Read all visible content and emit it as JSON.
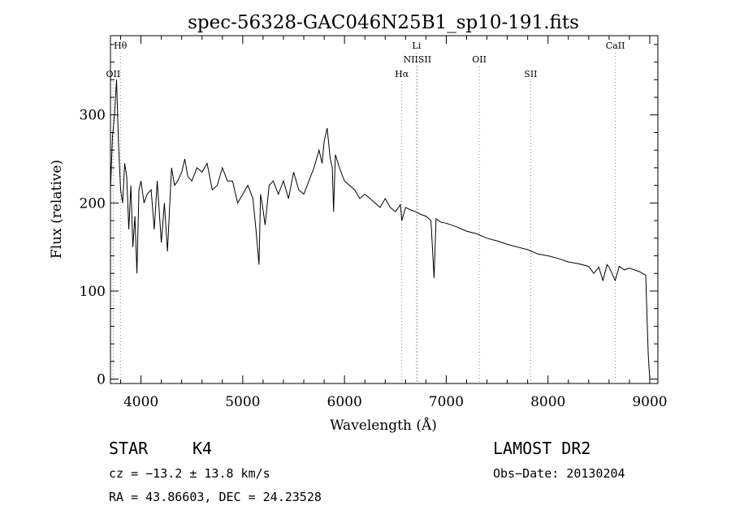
{
  "chart_data": {
    "type": "line",
    "title": "spec-56328-GAC046N25B1_sp10-191.fits",
    "xlabel": "Wavelength (Å)",
    "ylabel": "Flux (relative)",
    "xlim": [
      3700,
      9080
    ],
    "ylim": [
      -5,
      390
    ],
    "x_ticks": [
      4000,
      5000,
      6000,
      7000,
      8000,
      9000
    ],
    "y_ticks": [
      0,
      100,
      200,
      300
    ],
    "grid": false,
    "line_color": "#000000",
    "marker_line_color": "#888888",
    "lines": [
      {
        "label": "Hθ",
        "wavelength": 3798,
        "label_row": 0
      },
      {
        "label": "OII",
        "wavelength": 3727,
        "label_row": 2
      },
      {
        "label": "Li",
        "wavelength": 6708,
        "label_row": 0
      },
      {
        "label": "NIISII",
        "wavelength": 6716,
        "label_row": 1
      },
      {
        "label": "Hα",
        "wavelength": 6563,
        "label_row": 2
      },
      {
        "label": "OII",
        "wavelength": 7325,
        "label_row": 1
      },
      {
        "label": "SII",
        "wavelength": 7830,
        "label_row": 2
      },
      {
        "label": "CaII",
        "wavelength": 8662,
        "label_row": 0
      }
    ],
    "series": [
      {
        "x": [
          3700,
          3720,
          3740,
          3760,
          3780,
          3800,
          3820,
          3840,
          3860,
          3880,
          3900,
          3920,
          3940,
          3960,
          3980,
          4000,
          4030,
          4060,
          4100,
          4130,
          4160,
          4200,
          4230,
          4260,
          4300,
          4330,
          4360,
          4400,
          4430,
          4460,
          4500,
          4550,
          4600,
          4650,
          4700,
          4750,
          4800,
          4850,
          4900,
          4950,
          5000,
          5050,
          5100,
          5130,
          5160,
          5175,
          5190,
          5220,
          5260,
          5300,
          5350,
          5400,
          5450,
          5500,
          5550,
          5600,
          5650,
          5700,
          5750,
          5780,
          5800,
          5830,
          5860,
          5880,
          5893,
          5910,
          5950,
          6000,
          6050,
          6100,
          6150,
          6200,
          6250,
          6300,
          6350,
          6400,
          6450,
          6500,
          6550,
          6563,
          6600,
          6650,
          6700,
          6750,
          6800,
          6850,
          6880,
          6900,
          6950,
          7000,
          7100,
          7200,
          7300,
          7400,
          7500,
          7600,
          7700,
          7800,
          7900,
          8000,
          8100,
          8200,
          8300,
          8400,
          8450,
          8500,
          8540,
          8580,
          8600,
          8660,
          8700,
          8750,
          8800,
          8850,
          8900,
          8960,
          8985,
          9000
        ],
        "y": [
          215,
          275,
          300,
          340,
          265,
          215,
          200,
          245,
          230,
          170,
          220,
          150,
          185,
          120,
          215,
          225,
          200,
          210,
          215,
          170,
          225,
          155,
          200,
          145,
          240,
          220,
          225,
          235,
          250,
          230,
          225,
          240,
          235,
          245,
          215,
          220,
          240,
          225,
          225,
          200,
          210,
          220,
          205,
          170,
          130,
          210,
          200,
          175,
          220,
          225,
          210,
          225,
          205,
          235,
          215,
          210,
          225,
          240,
          260,
          245,
          270,
          285,
          250,
          240,
          190,
          255,
          240,
          225,
          220,
          215,
          205,
          210,
          205,
          200,
          195,
          205,
          195,
          190,
          198,
          180,
          195,
          192,
          190,
          187,
          185,
          180,
          115,
          182,
          178,
          177,
          173,
          168,
          165,
          160,
          157,
          153,
          150,
          147,
          142,
          140,
          137,
          133,
          131,
          128,
          120,
          127,
          112,
          130,
          127,
          112,
          128,
          124,
          126,
          124,
          122,
          118,
          28,
          0
        ]
      }
    ]
  },
  "info": {
    "class_label": "STAR",
    "subclass": "K4",
    "survey": "LAMOST DR2",
    "redshift": "cz = −13.2 ± 13.8 km/s",
    "obs_date": "Obs−Date: 20130204",
    "coords": "RA =  43.86603, DEC =  24.23528"
  }
}
